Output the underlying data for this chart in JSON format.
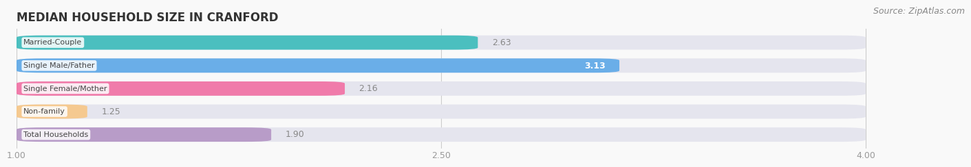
{
  "title": "MEDIAN HOUSEHOLD SIZE IN CRANFORD",
  "source": "Source: ZipAtlas.com",
  "categories": [
    "Married-Couple",
    "Single Male/Father",
    "Single Female/Mother",
    "Non-family",
    "Total Households"
  ],
  "values": [
    2.63,
    3.13,
    2.16,
    1.25,
    1.9
  ],
  "bar_colors": [
    "#4bbfbf",
    "#6aaee8",
    "#f07baa",
    "#f5c990",
    "#b89cc8"
  ],
  "xmin": 1.0,
  "xmax": 4.0,
  "xticks": [
    1.0,
    2.5,
    4.0
  ],
  "title_fontsize": 12,
  "source_fontsize": 9,
  "label_fontsize": 9,
  "tick_fontsize": 9,
  "cat_fontsize": 8,
  "background_color": "#f9f9f9",
  "bar_height": 0.62,
  "bar_gap": 0.18
}
